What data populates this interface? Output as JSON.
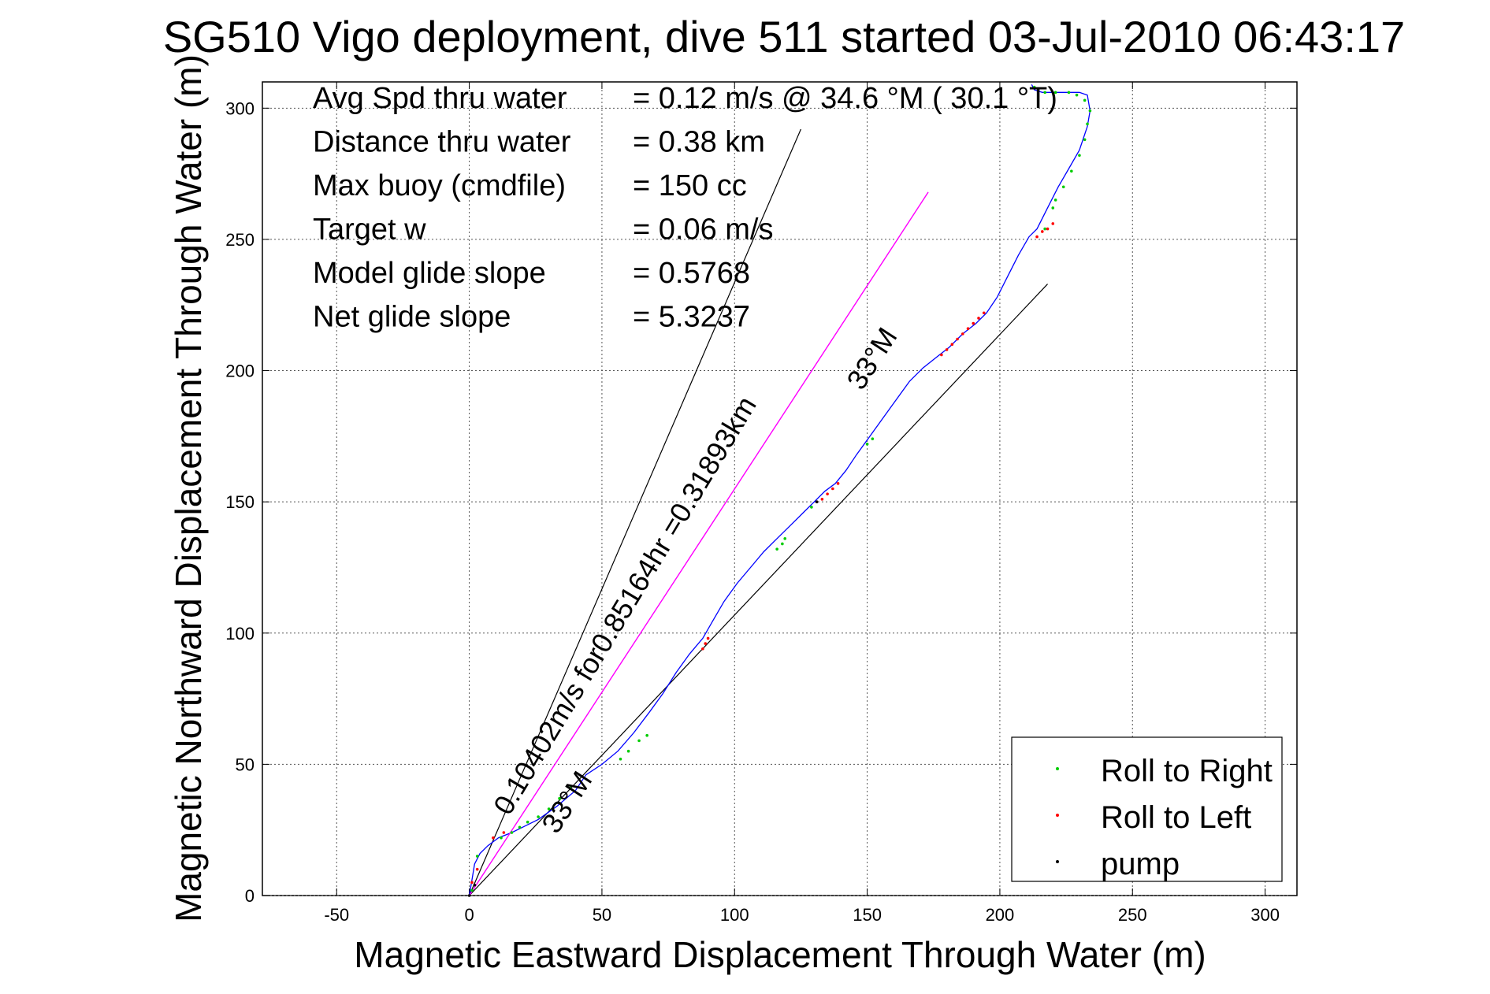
{
  "chart_data": {
    "type": "line",
    "title": "SG510 Vigo deployment, dive 511 started 03-Jul-2010 06:43:17",
    "xlabel": "Magnetic Eastward Displacement Through Water (m)",
    "ylabel": "Magnetic Northward Displacement Through Water (m)",
    "xlim": [
      -78,
      312
    ],
    "ylim": [
      0,
      310
    ],
    "xticks": [
      -50,
      0,
      50,
      100,
      150,
      200,
      250,
      300
    ],
    "yticks": [
      0,
      50,
      100,
      150,
      200,
      250,
      300
    ],
    "grid": true,
    "legend_position": "bottom-right",
    "stats": [
      {
        "label": "Avg Spd thru water",
        "value": "=  0.12 m/s @  34.6 °M ( 30.1 °T)"
      },
      {
        "label": "Distance thru water",
        "value": "=  0.38 km"
      },
      {
        "label": "Max buoy (cmdfile)",
        "value": "= 150 cc"
      },
      {
        "label": "Target w",
        "value": "= 0.06 m/s"
      },
      {
        "label": "Model glide slope",
        "value": "= 0.5768"
      },
      {
        "label": "Net glide slope",
        "value": "= 5.3237"
      }
    ],
    "annotations": [
      {
        "text": "0.10402m/s for0.85164hr =0.31893km",
        "x": 15,
        "y": 30,
        "angle_deg": 59
      },
      {
        "text": "33°M",
        "x": 33,
        "y": 23,
        "angle_deg": 57
      },
      {
        "text": "33°M",
        "x": 148,
        "y": 192,
        "angle_deg": 57
      }
    ],
    "reference_lines": [
      {
        "name": "",
        "color": "#000000",
        "x": [
          0,
          125
        ],
        "y": [
          0,
          292
        ]
      },
      {
        "name": "",
        "color": "#000000",
        "x": [
          0,
          218
        ],
        "y": [
          0,
          233
        ]
      },
      {
        "name": "",
        "color": "#ff00ff",
        "x": [
          0,
          173
        ],
        "y": [
          0,
          268
        ]
      }
    ],
    "series": [
      {
        "name": "",
        "color": "#0000ff",
        "x": [
          0,
          1,
          2,
          4,
          7,
          11,
          16,
          20,
          26,
          33,
          40,
          44,
          50,
          56,
          62,
          68,
          73,
          78,
          83,
          88,
          92,
          96,
          101,
          106,
          111,
          116,
          121,
          126,
          130,
          134,
          138,
          142,
          146,
          151,
          156,
          161,
          166,
          171,
          176,
          181,
          186,
          191,
          195,
          199,
          203,
          207,
          211,
          214,
          218,
          222,
          226,
          230,
          233,
          234,
          233,
          230,
          226,
          221,
          216,
          213,
          212
        ],
        "y": [
          0,
          6,
          12,
          16,
          19,
          22,
          24,
          26,
          29,
          34,
          40,
          46,
          50,
          55,
          62,
          70,
          77,
          85,
          92,
          98,
          105,
          112,
          119,
          125,
          131,
          136,
          141,
          146,
          150,
          154,
          157,
          162,
          168,
          175,
          182,
          189,
          196,
          201,
          205,
          209,
          214,
          218,
          222,
          228,
          236,
          244,
          251,
          254,
          262,
          270,
          277,
          284,
          293,
          299,
          305,
          306,
          306,
          306,
          306,
          307,
          309
        ]
      },
      {
        "name": "",
        "color": "#ff00ff",
        "x": [
          0,
          173
        ],
        "y": [
          0,
          268
        ]
      }
    ],
    "markers": [
      {
        "name": "Roll to Right",
        "color": "#00cc00",
        "x": [
          1,
          3,
          12,
          16,
          19,
          22,
          26,
          30,
          34,
          38,
          57,
          60,
          64,
          67,
          116,
          118,
          119,
          129,
          150,
          152,
          217,
          220,
          221,
          224,
          227,
          230,
          232,
          233,
          234,
          232,
          229,
          226,
          221,
          217,
          213
        ],
        "y": [
          2,
          15,
          22,
          24,
          26,
          28,
          30,
          33,
          37,
          41,
          52,
          55,
          59,
          61,
          132,
          134,
          136,
          148,
          172,
          174,
          254,
          262,
          265,
          270,
          276,
          282,
          288,
          294,
          299,
          303,
          305,
          306,
          306,
          306,
          308
        ]
      },
      {
        "name": "Roll to Left",
        "color": "#ff0000",
        "x": [
          1,
          3,
          9,
          13,
          88,
          89,
          90,
          131,
          133,
          135,
          137,
          139,
          178,
          180,
          182,
          184,
          186,
          188,
          190,
          192,
          194,
          214,
          216,
          218,
          220
        ],
        "y": [
          5,
          10,
          22,
          24,
          94,
          96,
          98,
          150,
          151,
          153,
          155,
          157,
          206,
          208,
          210,
          212,
          214,
          216,
          218,
          220,
          222,
          251,
          253,
          254,
          256
        ]
      },
      {
        "name": "pump",
        "color": "#000000",
        "x": [
          0,
          2,
          131
        ],
        "y": [
          0,
          4,
          150
        ]
      }
    ]
  }
}
